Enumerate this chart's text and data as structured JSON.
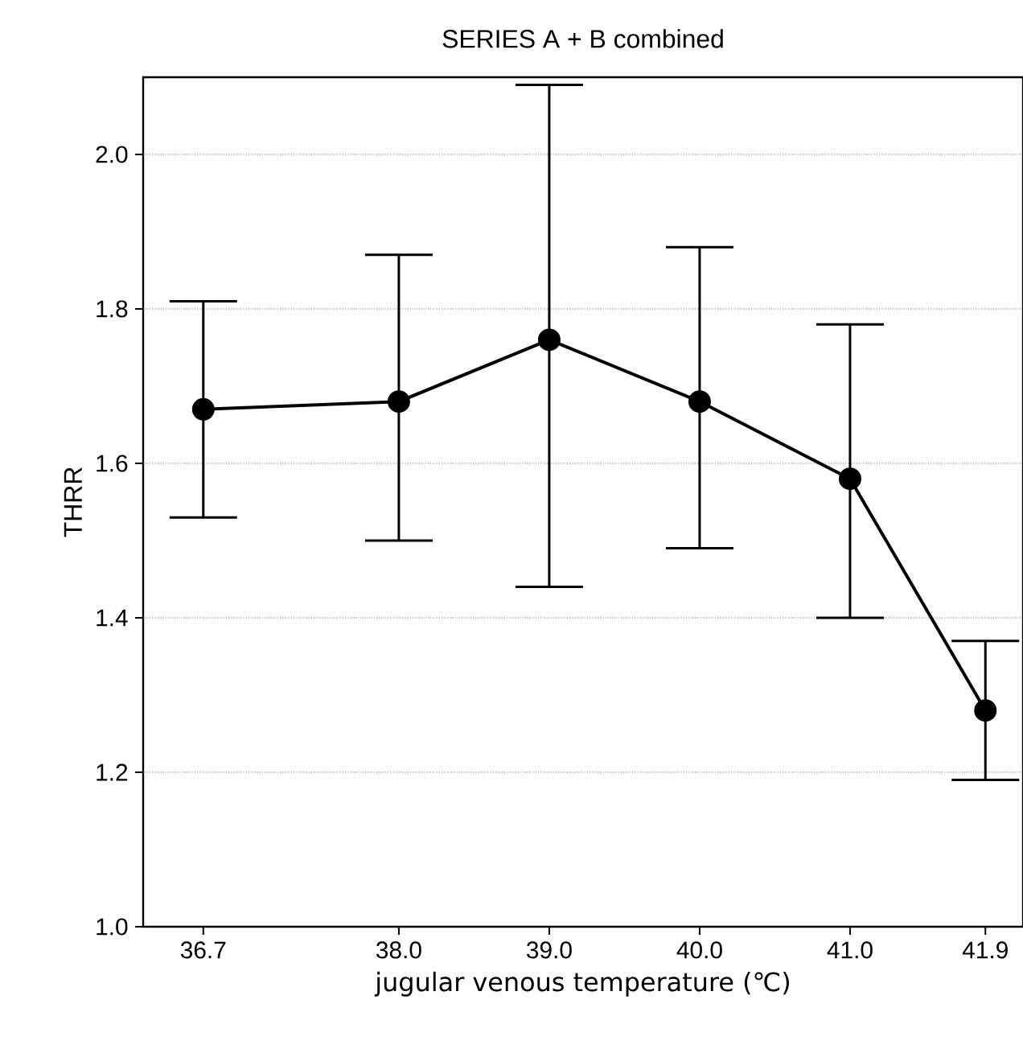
{
  "chart_data": {
    "type": "line",
    "title": "SERIES A + B combined",
    "xlabel": "jugular venous temperature (℃)",
    "ylabel": "THRR",
    "x": [
      36.7,
      38.0,
      39.0,
      40.0,
      41.0,
      41.9
    ],
    "series": [
      {
        "color": "#000000",
        "values": [
          1.67,
          1.68,
          1.76,
          1.68,
          1.58,
          1.28
        ],
        "errors": [
          [
            1.53,
            1.81
          ],
          [
            1.5,
            1.87
          ],
          [
            1.44,
            2.09
          ],
          [
            1.49,
            1.88
          ],
          [
            1.4,
            1.78
          ],
          [
            1.19,
            1.37
          ]
        ]
      }
    ],
    "xlim": [
      36.3,
      42.15
    ],
    "xticks": [
      {
        "value": 36.7,
        "label": "36.7"
      },
      {
        "value": 38.0,
        "label": "38.0"
      },
      {
        "value": 39.0,
        "label": "39.0"
      },
      {
        "value": 40.0,
        "label": "40.0"
      },
      {
        "value": 41.0,
        "label": "41.0"
      },
      {
        "value": 41.9,
        "label": "41.9"
      }
    ],
    "ylim": [
      1.0,
      2.1
    ],
    "yticks": [
      {
        "value": 1.0,
        "label": "1.0"
      },
      {
        "value": 1.2,
        "label": "1.2"
      },
      {
        "value": 1.4,
        "label": "1.4"
      },
      {
        "value": 1.6,
        "label": "1.6"
      },
      {
        "value": 1.8,
        "label": "1.8"
      },
      {
        "value": 2.0,
        "label": "2.0"
      }
    ],
    "grid": "y",
    "marker": "circle",
    "line_style": "solid"
  }
}
